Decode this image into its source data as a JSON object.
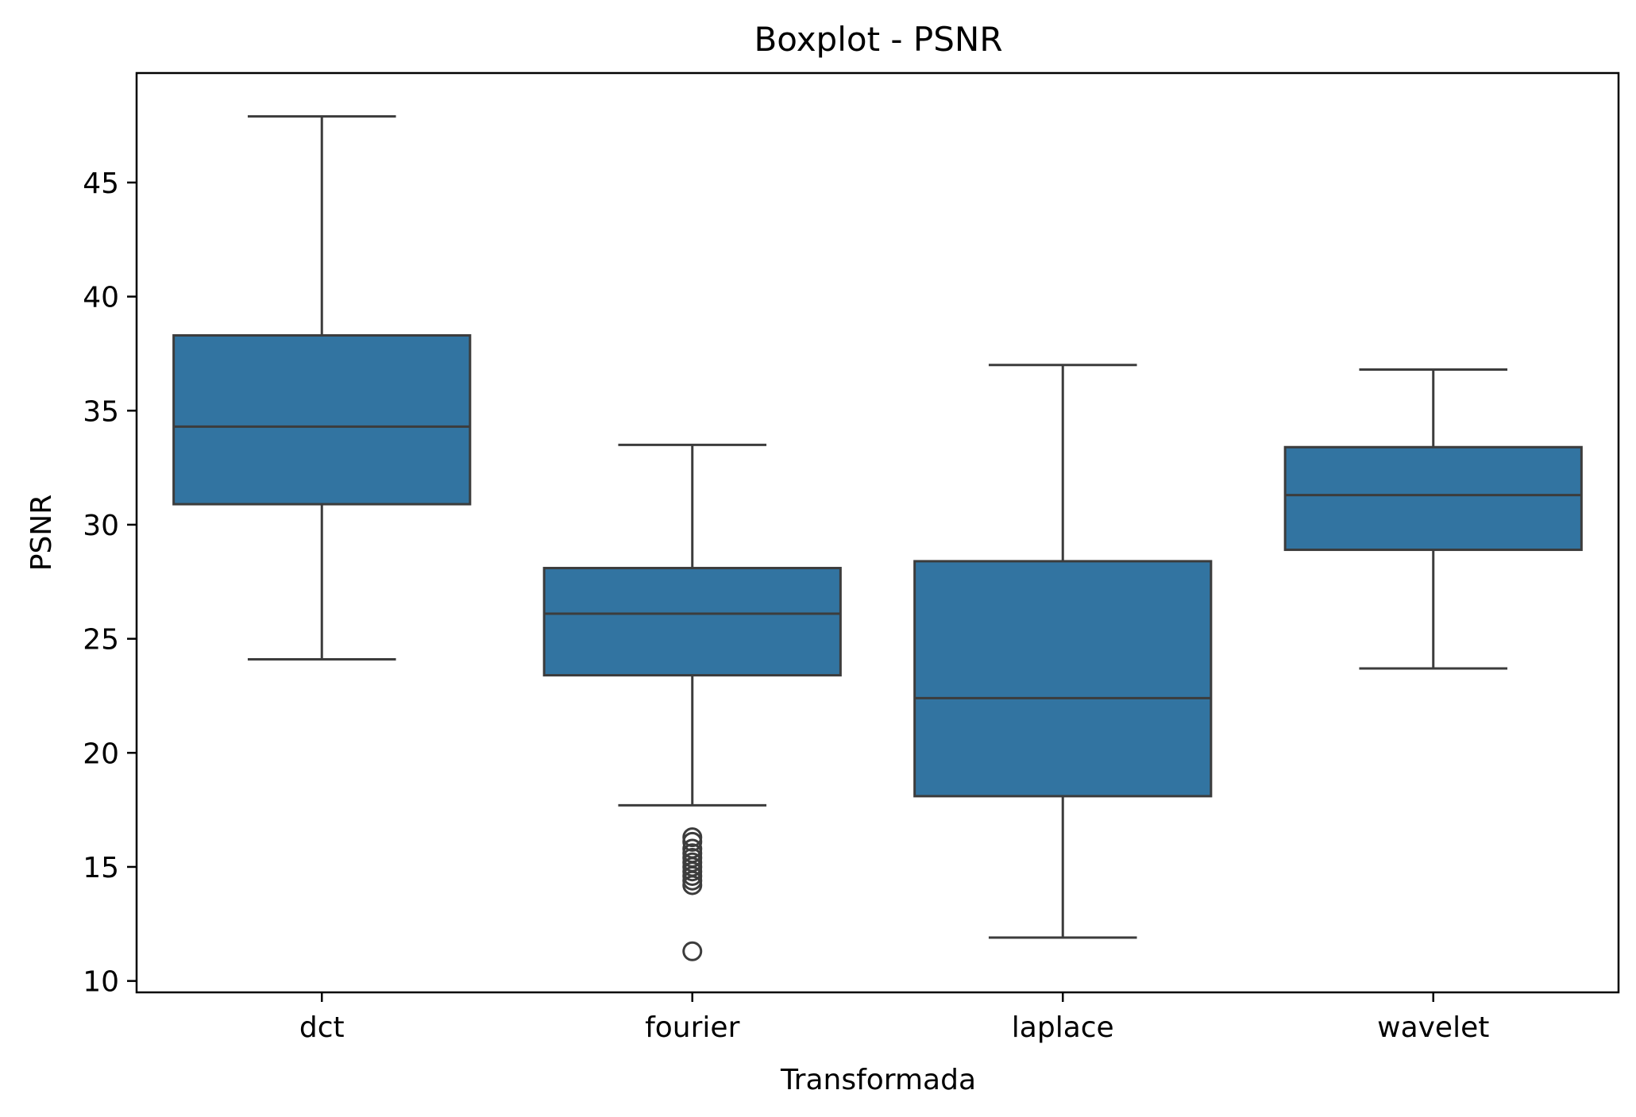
{
  "chart_data": {
    "type": "box",
    "title": "Boxplot - PSNR",
    "xlabel": "Transformada",
    "ylabel": "PSNR",
    "ylim": [
      9.5,
      49.8
    ],
    "yticks": [
      10,
      15,
      20,
      25,
      30,
      35,
      40,
      45
    ],
    "grid": false,
    "legend": "none",
    "box_color": "#3274a1",
    "line_color": "#3c3c3c",
    "categories": [
      "dct",
      "fourier",
      "laplace",
      "wavelet"
    ],
    "boxes": [
      {
        "category": "dct",
        "whisker_low": 24.1,
        "q1": 30.9,
        "median": 34.3,
        "q3": 38.3,
        "whisker_high": 47.9,
        "outliers": []
      },
      {
        "category": "fourier",
        "whisker_low": 17.7,
        "q1": 23.4,
        "median": 26.1,
        "q3": 28.1,
        "whisker_high": 33.5,
        "outliers": [
          16.3,
          16.1,
          15.8,
          15.6,
          15.4,
          15.2,
          15.0,
          14.8,
          14.6,
          14.4,
          14.2,
          11.3
        ]
      },
      {
        "category": "laplace",
        "whisker_low": 11.9,
        "q1": 18.1,
        "median": 22.4,
        "q3": 28.4,
        "whisker_high": 37.0,
        "outliers": []
      },
      {
        "category": "wavelet",
        "whisker_low": 23.7,
        "q1": 28.9,
        "median": 31.3,
        "q3": 33.4,
        "whisker_high": 36.8,
        "outliers": []
      }
    ]
  }
}
